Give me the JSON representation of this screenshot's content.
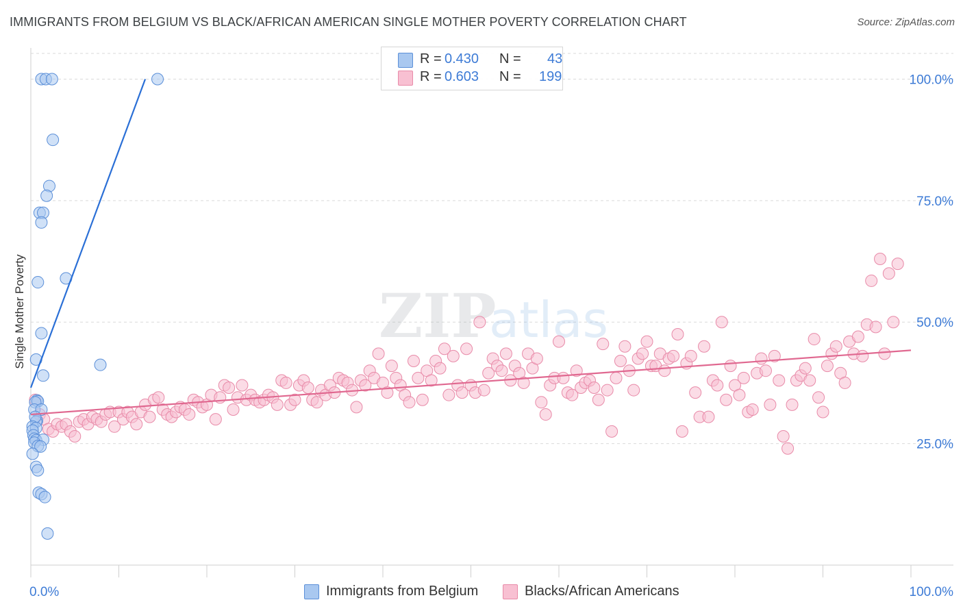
{
  "header": {
    "title": "IMMIGRANTS FROM BELGIUM VS BLACK/AFRICAN AMERICAN SINGLE MOTHER POVERTY CORRELATION CHART",
    "source": "Source: ZipAtlas.com"
  },
  "watermark": {
    "part1": "ZIP",
    "part2": "atlas"
  },
  "legend": {
    "rows": [
      {
        "r_label": "R =",
        "r_value": "0.430",
        "n_label": "N =",
        "n_value": "43",
        "color": "#a9c8f0",
        "border": "#5b8fd8"
      },
      {
        "r_label": "R =",
        "r_value": "0.603",
        "n_label": "N =",
        "n_value": "199",
        "color": "#f8c0d2",
        "border": "#e88aa8"
      }
    ]
  },
  "bottom_legend": {
    "items": [
      {
        "label": "Immigrants from Belgium",
        "color": "#a9c8f0",
        "border": "#5b8fd8"
      },
      {
        "label": "Blacks/African Americans",
        "color": "#f8c0d2",
        "border": "#e88aa8"
      }
    ]
  },
  "chart_data": {
    "type": "scatter",
    "title": "IMMIGRANTS FROM BELGIUM VS BLACK/AFRICAN AMERICAN SINGLE MOTHER POVERTY CORRELATION CHART",
    "xlabel": "",
    "ylabel": "Single Mother Poverty",
    "xlim": [
      0,
      100
    ],
    "ylim": [
      0,
      105
    ],
    "x_tick_labels": [
      "0.0%",
      "100.0%"
    ],
    "y_ticks": [
      25,
      50,
      75,
      100
    ],
    "y_tick_labels": [
      "25.0%",
      "50.0%",
      "75.0%",
      "100.0%"
    ],
    "grid": true,
    "legend_position": "top-center",
    "series": [
      {
        "name": "Immigrants from Belgium",
        "color": "#a9c8f0",
        "line_color": "#2a6fd6",
        "trendline": [
          [
            0.0,
            36.5
          ],
          [
            13.0,
            100.0
          ]
        ],
        "points": [
          [
            1.2,
            100
          ],
          [
            1.7,
            100
          ],
          [
            2.4,
            100
          ],
          [
            14.4,
            100
          ],
          [
            2.5,
            87.5
          ],
          [
            2.1,
            78
          ],
          [
            1.8,
            76
          ],
          [
            1.0,
            72.5
          ],
          [
            1.4,
            72.5
          ],
          [
            1.2,
            70.5
          ],
          [
            4.0,
            59
          ],
          [
            0.8,
            58.2
          ],
          [
            1.2,
            47.7
          ],
          [
            0.6,
            42.3
          ],
          [
            1.4,
            39
          ],
          [
            7.9,
            41.2
          ],
          [
            0.7,
            33.9
          ],
          [
            0.8,
            33.7
          ],
          [
            0.5,
            33.5
          ],
          [
            0.4,
            32.0
          ],
          [
            1.2,
            32.0
          ],
          [
            0.7,
            29.7
          ],
          [
            0.6,
            29.5
          ],
          [
            0.5,
            30.5
          ],
          [
            0.2,
            28.5
          ],
          [
            0.6,
            28.2
          ],
          [
            0.2,
            27.7
          ],
          [
            0.3,
            26.7
          ],
          [
            0.4,
            26.0
          ],
          [
            0.6,
            25.7
          ],
          [
            1.4,
            25.8
          ],
          [
            0.4,
            25.2
          ],
          [
            0.8,
            24.5
          ],
          [
            1.1,
            24.4
          ],
          [
            0.2,
            22.9
          ],
          [
            0.6,
            20.2
          ],
          [
            0.8,
            19.5
          ],
          [
            0.9,
            14.9
          ],
          [
            1.2,
            14.6
          ],
          [
            1.6,
            14.0
          ],
          [
            1.9,
            6.5
          ]
        ]
      },
      {
        "name": "Blacks/African Americans",
        "color": "#f8c0d2",
        "line_color": "#e06890",
        "trendline": [
          [
            0.0,
            31.0
          ],
          [
            100.0,
            44.2
          ]
        ],
        "points": [
          [
            0.5,
            34
          ],
          [
            1.0,
            31
          ],
          [
            1.5,
            30
          ],
          [
            2.0,
            28
          ],
          [
            2.5,
            27.5
          ],
          [
            3.0,
            29
          ],
          [
            3.5,
            28.5
          ],
          [
            4.0,
            29
          ],
          [
            4.5,
            27.5
          ],
          [
            5.0,
            26.5
          ],
          [
            5.5,
            29.5
          ],
          [
            6.0,
            30
          ],
          [
            6.5,
            29
          ],
          [
            7.0,
            30.5
          ],
          [
            7.5,
            30
          ],
          [
            8.0,
            29.5
          ],
          [
            8.5,
            31
          ],
          [
            9.0,
            31.5
          ],
          [
            9.5,
            28.5
          ],
          [
            10.0,
            31.5
          ],
          [
            10.5,
            30
          ],
          [
            11.0,
            31.5
          ],
          [
            11.5,
            30.5
          ],
          [
            12.0,
            29
          ],
          [
            12.5,
            31.5
          ],
          [
            13.0,
            33
          ],
          [
            13.5,
            30.5
          ],
          [
            14.0,
            34
          ],
          [
            14.5,
            34.5
          ],
          [
            15.0,
            32
          ],
          [
            15.5,
            31
          ],
          [
            16.0,
            30.5
          ],
          [
            16.5,
            31.5
          ],
          [
            17.0,
            32.5
          ],
          [
            17.5,
            32
          ],
          [
            18.0,
            31
          ],
          [
            18.5,
            34
          ],
          [
            19.0,
            33.5
          ],
          [
            19.5,
            32.5
          ],
          [
            20.0,
            33
          ],
          [
            20.5,
            35
          ],
          [
            21.0,
            30
          ],
          [
            21.5,
            34.5
          ],
          [
            22.0,
            37
          ],
          [
            22.5,
            36.5
          ],
          [
            23.0,
            32
          ],
          [
            23.5,
            34.5
          ],
          [
            24.0,
            37
          ],
          [
            24.5,
            34
          ],
          [
            25.0,
            35
          ],
          [
            25.5,
            34
          ],
          [
            26.0,
            33.5
          ],
          [
            26.5,
            34
          ],
          [
            27.0,
            35
          ],
          [
            27.5,
            34.5
          ],
          [
            28.0,
            33
          ],
          [
            28.5,
            38
          ],
          [
            29.0,
            37.5
          ],
          [
            29.5,
            33
          ],
          [
            30.0,
            34
          ],
          [
            30.5,
            37
          ],
          [
            31.0,
            38
          ],
          [
            31.5,
            36.5
          ],
          [
            32.0,
            34
          ],
          [
            32.5,
            33.5
          ],
          [
            33.0,
            36
          ],
          [
            33.5,
            35
          ],
          [
            34.0,
            37
          ],
          [
            34.5,
            35.5
          ],
          [
            35.0,
            38.5
          ],
          [
            35.5,
            38
          ],
          [
            36.0,
            37.5
          ],
          [
            36.5,
            36
          ],
          [
            37.0,
            32.5
          ],
          [
            37.5,
            38
          ],
          [
            38.0,
            37
          ],
          [
            38.5,
            40
          ],
          [
            39.0,
            38.5
          ],
          [
            39.5,
            43.5
          ],
          [
            40.0,
            37.5
          ],
          [
            40.5,
            35.5
          ],
          [
            41.0,
            41
          ],
          [
            41.5,
            38.5
          ],
          [
            42.0,
            37
          ],
          [
            42.5,
            35
          ],
          [
            43.0,
            33.5
          ],
          [
            43.5,
            42
          ],
          [
            44.0,
            38.5
          ],
          [
            44.5,
            34
          ],
          [
            45.0,
            40
          ],
          [
            45.5,
            38
          ],
          [
            46.0,
            42
          ],
          [
            46.5,
            40.5
          ],
          [
            47.0,
            44.5
          ],
          [
            47.5,
            35
          ],
          [
            48.0,
            43
          ],
          [
            48.5,
            37
          ],
          [
            49.0,
            35.5
          ],
          [
            49.5,
            44.5
          ],
          [
            50.0,
            37
          ],
          [
            50.5,
            35.5
          ],
          [
            51.0,
            50
          ],
          [
            51.5,
            36
          ],
          [
            52.0,
            39.5
          ],
          [
            52.5,
            42.5
          ],
          [
            53.0,
            41
          ],
          [
            53.5,
            40
          ],
          [
            54.0,
            43.5
          ],
          [
            54.5,
            38
          ],
          [
            55.0,
            41
          ],
          [
            55.5,
            39.5
          ],
          [
            56.0,
            37.5
          ],
          [
            56.5,
            43.5
          ],
          [
            57.0,
            40.5
          ],
          [
            57.5,
            42.5
          ],
          [
            58.0,
            33.5
          ],
          [
            58.5,
            31
          ],
          [
            59.0,
            37
          ],
          [
            59.5,
            38.5
          ],
          [
            60.0,
            46
          ],
          [
            60.5,
            38.5
          ],
          [
            61.0,
            35.5
          ],
          [
            61.5,
            35
          ],
          [
            62.0,
            40
          ],
          [
            62.5,
            36.5
          ],
          [
            63.0,
            37.5
          ],
          [
            63.5,
            38
          ],
          [
            64.0,
            36.5
          ],
          [
            64.5,
            34
          ],
          [
            65.0,
            45.5
          ],
          [
            65.5,
            36
          ],
          [
            66.0,
            27.5
          ],
          [
            66.5,
            38.5
          ],
          [
            67.0,
            42
          ],
          [
            67.5,
            45
          ],
          [
            68.0,
            40
          ],
          [
            68.5,
            36
          ],
          [
            69.0,
            42.5
          ],
          [
            69.5,
            43.5
          ],
          [
            70.0,
            46
          ],
          [
            70.5,
            41
          ],
          [
            71.0,
            41
          ],
          [
            71.5,
            43.5
          ],
          [
            72.0,
            40
          ],
          [
            72.5,
            42.5
          ],
          [
            73.0,
            43
          ],
          [
            73.5,
            47.5
          ],
          [
            74.0,
            27.5
          ],
          [
            74.5,
            41.5
          ],
          [
            75.0,
            43
          ],
          [
            75.5,
            35.5
          ],
          [
            76.0,
            30.5
          ],
          [
            76.5,
            45
          ],
          [
            77.0,
            30.5
          ],
          [
            77.5,
            38
          ],
          [
            78.0,
            37
          ],
          [
            78.5,
            50
          ],
          [
            79.0,
            34
          ],
          [
            79.5,
            41
          ],
          [
            80.0,
            37
          ],
          [
            80.5,
            35
          ],
          [
            81.0,
            38.5
          ],
          [
            81.5,
            31.5
          ],
          [
            82.0,
            32
          ],
          [
            82.5,
            39.5
          ],
          [
            83.0,
            42.5
          ],
          [
            83.5,
            40
          ],
          [
            84.0,
            33
          ],
          [
            84.5,
            43
          ],
          [
            85.0,
            38
          ],
          [
            85.5,
            26.5
          ],
          [
            86.0,
            24
          ],
          [
            86.5,
            33
          ],
          [
            87.0,
            38
          ],
          [
            87.5,
            39
          ],
          [
            88.0,
            40.5
          ],
          [
            88.5,
            38
          ],
          [
            89.0,
            46.5
          ],
          [
            89.5,
            34.5
          ],
          [
            90.0,
            31.5
          ],
          [
            90.5,
            41
          ],
          [
            91.0,
            43.5
          ],
          [
            91.5,
            45
          ],
          [
            92.0,
            39.5
          ],
          [
            92.5,
            37.5
          ],
          [
            93.0,
            46
          ],
          [
            93.5,
            43.5
          ],
          [
            94.0,
            47
          ],
          [
            94.5,
            43
          ],
          [
            95.0,
            49.5
          ],
          [
            95.5,
            58.5
          ],
          [
            96.0,
            49
          ],
          [
            96.5,
            63
          ],
          [
            97.0,
            43.5
          ],
          [
            97.5,
            60
          ],
          [
            98.0,
            50
          ],
          [
            98.5,
            62
          ]
        ]
      }
    ]
  }
}
